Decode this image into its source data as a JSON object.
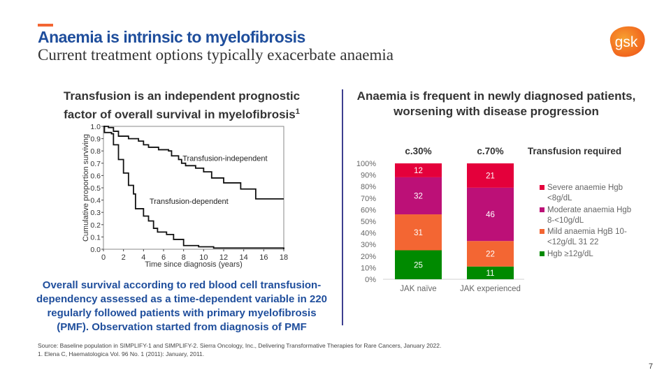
{
  "header": {
    "title": "Anaemia is intrinsic to myelofibrosis",
    "subtitle": "Current treatment options typically exacerbate anaemia",
    "logo_text": "gsk",
    "accent_color": "#f36633"
  },
  "left": {
    "heading_line1": "Transfusion is an independent prognostic",
    "heading_line2": "factor of overall survival in myelofibrosis",
    "heading_sup": "1",
    "caption": "Overall survival according to red blood cell transfusion-dependency assessed as a time-dependent variable in 220 regularly followed patients with primary myelofibrosis (PMF). Observation started from diagnosis of PMF"
  },
  "right": {
    "heading": "Anaemia is frequent in newly diagnosed patients, worsening with disease progression"
  },
  "chart_data": [
    {
      "type": "line",
      "step": true,
      "xlabel": "Time since diagnosis (years)",
      "ylabel": "Cumulative proportion surviving",
      "xlim": [
        0,
        18
      ],
      "ylim": [
        0,
        1
      ],
      "xticks": [
        0,
        2,
        4,
        6,
        8,
        10,
        12,
        14,
        16,
        18
      ],
      "yticks": [
        "0.0",
        "0.1",
        "0.2",
        "0.3",
        "0.4",
        "0.5",
        "0.6",
        "0.7",
        "0.8",
        "0.9",
        "1.0"
      ],
      "series": [
        {
          "name": "Transfusion-independent",
          "x": [
            0,
            0.5,
            1,
            1.5,
            2.5,
            3.5,
            4,
            4.5,
            5.5,
            6.5,
            6.8,
            7.5,
            7.8,
            8.2,
            9.2,
            10,
            10.8,
            12,
            13.7,
            15.2,
            18
          ],
          "y": [
            1.0,
            0.99,
            0.96,
            0.92,
            0.9,
            0.88,
            0.85,
            0.83,
            0.81,
            0.8,
            0.76,
            0.73,
            0.7,
            0.68,
            0.66,
            0.63,
            0.58,
            0.54,
            0.49,
            0.41,
            0.41
          ]
        },
        {
          "name": "Transfusion-dependent",
          "x": [
            0,
            0.1,
            0.8,
            1,
            1.5,
            2,
            2.5,
            3,
            3.2,
            4,
            4.5,
            5,
            5.4,
            6.3,
            7,
            8,
            9.5,
            11,
            18
          ],
          "y": [
            1.0,
            0.95,
            0.94,
            0.85,
            0.73,
            0.62,
            0.52,
            0.45,
            0.33,
            0.27,
            0.23,
            0.17,
            0.14,
            0.12,
            0.08,
            0.03,
            0.02,
            0.01,
            0.0
          ]
        }
      ]
    },
    {
      "type": "bar",
      "stacked": true,
      "categories": [
        "JAK naïve",
        "JAK experienced"
      ],
      "ylim": [
        0,
        100
      ],
      "yticks": [
        "0%",
        "10%",
        "20%",
        "30%",
        "40%",
        "50%",
        "60%",
        "70%",
        "80%",
        "90%",
        "100%"
      ],
      "top_labels": [
        "c.30%",
        "c.70%"
      ],
      "top_label_title": "Transfusion required",
      "legend_position": "right",
      "series": [
        {
          "name": "Hgb ≥12g/dL",
          "color": "#008a00",
          "values": [
            25,
            11
          ]
        },
        {
          "name": "Mild anaemia HgB 10-<12g/dL 31 22",
          "color": "#f36633",
          "values": [
            31,
            22
          ]
        },
        {
          "name": "Moderate anaemia Hgb 8-<10g/dL",
          "color": "#bc1077",
          "values": [
            32,
            46
          ]
        },
        {
          "name": "Severe anaemie Hgb <8g/dL",
          "color": "#e4003b",
          "values": [
            12,
            21
          ]
        }
      ]
    }
  ],
  "footer": {
    "source": "Source: Baseline population in SIMPLIFY-1 and SIMPLIFY-2. Sierra Oncology, Inc., Delivering Transformative Therapies for Rare Cancers, January 2022.",
    "ref1": "1. Elena C, Haematologica Vol. 96 No. 1 (2011): January, 2011.",
    "page": "7"
  }
}
